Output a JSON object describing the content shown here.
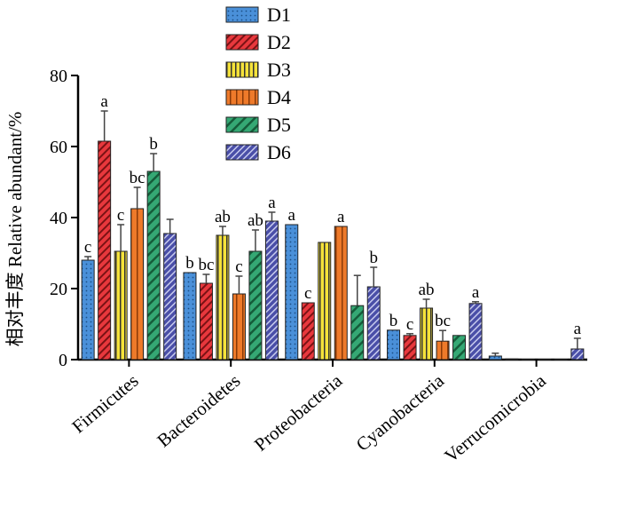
{
  "chart_data": {
    "type": "bar",
    "ylabel": "相对丰度 Relative abundant/%",
    "ylim": [
      0,
      80
    ],
    "yticks": [
      "0",
      "20",
      "40",
      "60",
      "80"
    ],
    "categories": [
      "Firmicutes",
      "Bacteroidetes",
      "Proteobacteria",
      "Cyanobacteria",
      "Verrucomicrobia"
    ],
    "legend_position": "top-center",
    "series": [
      {
        "name": "D1",
        "color": "#4a90d9",
        "pattern": "dots",
        "values": [
          28,
          24.5,
          38,
          8.3,
          1.0
        ],
        "errors": [
          1.0,
          0,
          0,
          0,
          0.8
        ],
        "labels": [
          "c",
          "b",
          "a",
          "b",
          ""
        ]
      },
      {
        "name": "D2",
        "color": "#e8383d",
        "pattern": "diagonal",
        "values": [
          61.5,
          21.5,
          16,
          6.8,
          0.2
        ],
        "errors": [
          8.5,
          2.5,
          0,
          0.5,
          0
        ],
        "labels": [
          "a",
          "bc",
          "c",
          "c",
          ""
        ]
      },
      {
        "name": "D3",
        "color": "#f5e23a",
        "pattern": "vertical",
        "values": [
          30.5,
          35,
          33,
          14.5,
          0.1
        ],
        "errors": [
          7.5,
          2.5,
          0,
          2.5,
          0
        ],
        "labels": [
          "c",
          "ab",
          "",
          "ab",
          ""
        ]
      },
      {
        "name": "D4",
        "color": "#ee7a2a",
        "pattern": "vertical-wide",
        "values": [
          42.5,
          18.5,
          37.5,
          5.2,
          0.05
        ],
        "errors": [
          6.0,
          5.0,
          0,
          3.0,
          0
        ],
        "labels": [
          "bc",
          "c",
          "a",
          "bc",
          ""
        ]
      },
      {
        "name": "D5",
        "color": "#35a874",
        "pattern": "diagonal-wide",
        "values": [
          53,
          30.5,
          15.2,
          6.8,
          0.1
        ],
        "errors": [
          5.0,
          6.0,
          8.5,
          0,
          0
        ],
        "labels": [
          "b",
          "ab",
          "",
          "",
          ""
        ]
      },
      {
        "name": "D6",
        "color": "#4a4fa8",
        "pattern": "diagonal-dense",
        "values": [
          35.5,
          39,
          20.5,
          15.8,
          3.0
        ],
        "errors": [
          4.0,
          2.5,
          5.5,
          0.5,
          3.0
        ],
        "labels": [
          "",
          "a",
          "b",
          "a",
          "a"
        ]
      }
    ]
  }
}
